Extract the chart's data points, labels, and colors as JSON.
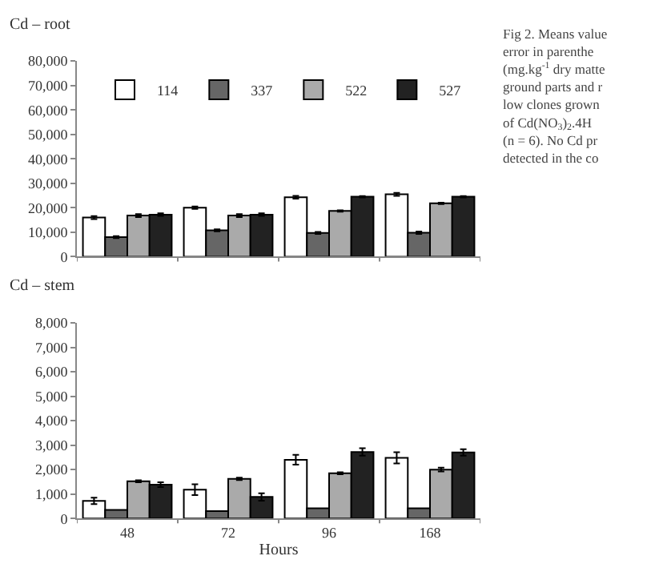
{
  "chart_data": [
    {
      "type": "bar",
      "title": "Cd – root",
      "categories": [
        "48",
        "72",
        "96",
        "168"
      ],
      "tick_labels": "y",
      "legend": "top",
      "ylim": [
        0,
        80000
      ],
      "yticks": [
        {
          "value": 0,
          "label": "0"
        },
        {
          "value": 10000,
          "label": "10,000"
        },
        {
          "value": 20000,
          "label": "20,000"
        },
        {
          "value": 30000,
          "label": "30,000"
        },
        {
          "value": 40000,
          "label": "40,000"
        },
        {
          "value": 50000,
          "label": "50,000"
        },
        {
          "value": 60000,
          "label": "60,000"
        },
        {
          "value": 70000,
          "label": "70,000"
        },
        {
          "value": 80000,
          "label": "80,000"
        }
      ],
      "series": [
        {
          "name": "114",
          "color": "#ffffff",
          "values": [
            16000,
            20000,
            24300,
            25500
          ],
          "errors": [
            600,
            500,
            600,
            600
          ]
        },
        {
          "name": "337",
          "color": "#666666",
          "values": [
            8000,
            10800,
            9700,
            9800
          ],
          "errors": [
            400,
            400,
            400,
            500
          ]
        },
        {
          "name": "522",
          "color": "#aaaaaa",
          "values": [
            16800,
            16800,
            18700,
            21800
          ],
          "errors": [
            600,
            600,
            300,
            300
          ]
        },
        {
          "name": "527",
          "color": "#222222",
          "values": [
            17200,
            17200,
            24500,
            24500
          ],
          "errors": [
            500,
            500,
            300,
            300
          ]
        }
      ],
      "annotations": [
        "Fig 2. Means value\nerror in parenthe\n(mg.kg$^{-1}$ dry matte\nground parts and r\nlow clones grown\nof Cd(NO$_{3}$)$_{2}$.4H\n(n = 6). No Cd pr\ndetected in the co"
      ]
    },
    {
      "type": "bar",
      "title": "Cd – stem",
      "xlabel": "Hours",
      "categories": [
        "48",
        "72",
        "96",
        "168"
      ],
      "ylim": [
        0,
        8000
      ],
      "yticks": [
        {
          "value": 0,
          "label": "0"
        },
        {
          "value": 1000,
          "label": "1,000"
        },
        {
          "value": 2000,
          "label": "2,000"
        },
        {
          "value": 3000,
          "label": "3,000"
        },
        {
          "value": 4000,
          "label": "4,000"
        },
        {
          "value": 5000,
          "label": "5,000"
        },
        {
          "value": 6000,
          "label": "6,000"
        },
        {
          "value": 7000,
          "label": "7,000"
        },
        {
          "value": 8000,
          "label": "8,000"
        }
      ],
      "series": [
        {
          "color": "#ffffff",
          "values": [
            720,
            1180,
            2400,
            2480
          ],
          "errors": [
            130,
            220,
            200,
            230
          ]
        },
        {
          "color": "#666666",
          "values": [
            350,
            300,
            420,
            420
          ]
        },
        {
          "color": "#aaaaaa",
          "values": [
            1520,
            1620,
            1850,
            2000
          ],
          "errors": [
            40,
            50,
            40,
            80
          ]
        },
        {
          "color": "#222222",
          "values": [
            1380,
            880,
            2720,
            2700
          ],
          "errors": [
            100,
            150,
            150,
            130
          ]
        }
      ]
    }
  ]
}
